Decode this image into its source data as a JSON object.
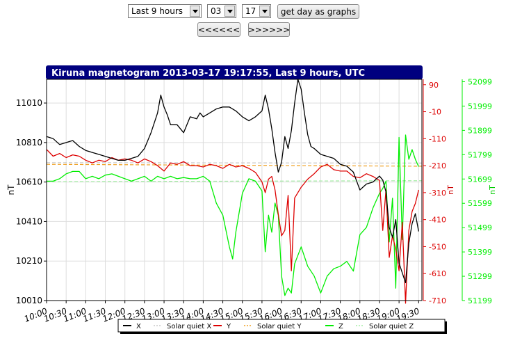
{
  "controls": {
    "range_select": "Last 9 hours",
    "month_select": "03",
    "day_select": "17",
    "get_day_button": "get day as graphs",
    "prev_button": "<<<<<<",
    "next_button": ">>>>>>"
  },
  "colors": {
    "x": "#000000",
    "y": "#dd0000",
    "z": "#00ee00",
    "quiet_x": "#c8c8c8",
    "quiet_y": "#f0a020",
    "quiet_z": "#a6eea6",
    "title_bg": "#00007f"
  },
  "chart_data": {
    "type": "line",
    "title": "Kiruna magnetogram 2013-03-17 19:17:55, Last 9 hours, UTC",
    "x_ticks": [
      "10:00",
      "10:30",
      "11:00",
      "11:30",
      "12:00",
      "12:30",
      "13:00",
      "13:30",
      "14:00",
      "14:30",
      "15:00",
      "15:30",
      "16:00",
      "16:30",
      "17:00",
      "17:30",
      "18:00",
      "18:30",
      "19:00",
      "19:30"
    ],
    "xlim": [
      "10:00",
      "19:35"
    ],
    "left_axis": {
      "label": "nT",
      "ylim": [
        10010,
        11130
      ],
      "ticks": [
        "10010",
        "10210",
        "10410",
        "10610",
        "10810",
        "11010"
      ]
    },
    "right_axis_y": {
      "label": "nT",
      "ylim": [
        -710,
        110
      ],
      "ticks": [
        "90",
        "-10",
        "-110",
        "-210",
        "-310",
        "-410",
        "-510",
        "-610",
        "-710"
      ]
    },
    "right_axis_z": {
      "label": "nT",
      "ylim": [
        51199,
        52109
      ],
      "ticks": [
        "52099",
        "51999",
        "51899",
        "51799",
        "51699",
        "51599",
        "51499",
        "51399",
        "51299",
        "51199"
      ]
    },
    "grid": true,
    "legend": [
      "X",
      "Solar quiet X",
      "Y",
      "Solar quiet Y",
      "Z",
      "Solar quiet Z"
    ],
    "series": [
      {
        "name": "X",
        "axis": "left",
        "style": "solid",
        "x": [
          "10:00",
          "10:10",
          "10:20",
          "10:30",
          "10:40",
          "10:50",
          "11:00",
          "11:10",
          "11:20",
          "11:30",
          "11:40",
          "11:50",
          "12:00",
          "12:10",
          "12:20",
          "12:30",
          "12:40",
          "12:50",
          "12:55",
          "13:00",
          "13:05",
          "13:10",
          "13:20",
          "13:30",
          "13:40",
          "13:50",
          "13:55",
          "14:00",
          "14:10",
          "14:20",
          "14:30",
          "14:40",
          "14:50",
          "15:00",
          "15:10",
          "15:20",
          "15:30",
          "15:35",
          "15:40",
          "15:45",
          "15:50",
          "15:55",
          "16:00",
          "16:05",
          "16:10",
          "16:15",
          "16:20",
          "16:25",
          "16:30",
          "16:35",
          "16:40",
          "16:45",
          "16:50",
          "17:00",
          "17:10",
          "17:20",
          "17:30",
          "17:40",
          "17:50",
          "18:00",
          "18:10",
          "18:20",
          "18:30",
          "18:35",
          "18:40",
          "18:45",
          "18:50",
          "18:55",
          "19:00",
          "19:05",
          "19:10",
          "19:15",
          "19:20",
          "19:25",
          "19:30"
        ],
        "values": [
          10840,
          10830,
          10800,
          10810,
          10820,
          10790,
          10770,
          10760,
          10750,
          10740,
          10730,
          10720,
          10720,
          10730,
          10740,
          10780,
          10860,
          10960,
          11050,
          10990,
          10950,
          10900,
          10900,
          10860,
          10940,
          10930,
          10960,
          10940,
          10960,
          10980,
          10990,
          10990,
          10970,
          10940,
          10920,
          10940,
          10970,
          11050,
          10980,
          10880,
          10760,
          10660,
          10710,
          10840,
          10780,
          10870,
          11010,
          11130,
          11080,
          10960,
          10850,
          10790,
          10780,
          10750,
          10740,
          10730,
          10700,
          10690,
          10660,
          10570,
          10600,
          10610,
          10640,
          10620,
          10560,
          10380,
          10330,
          10420,
          10200,
          10150,
          10100,
          10300,
          10400,
          10450,
          10360
        ]
      },
      {
        "name": "Solar quiet X",
        "axis": "left",
        "style": "dashed",
        "x": [
          "10:00",
          "19:35"
        ],
        "values": [
          10708,
          10706
        ]
      },
      {
        "name": "Y",
        "axis": "right_y",
        "style": "solid",
        "x": [
          "10:00",
          "10:10",
          "10:20",
          "10:30",
          "10:40",
          "10:50",
          "11:00",
          "11:10",
          "11:20",
          "11:30",
          "11:40",
          "11:50",
          "12:00",
          "12:10",
          "12:20",
          "12:30",
          "12:40",
          "12:50",
          "13:00",
          "13:10",
          "13:20",
          "13:30",
          "13:40",
          "13:50",
          "14:00",
          "14:10",
          "14:20",
          "14:30",
          "14:40",
          "14:50",
          "15:00",
          "15:10",
          "15:20",
          "15:30",
          "15:35",
          "15:40",
          "15:45",
          "15:50",
          "15:55",
          "16:00",
          "16:05",
          "16:10",
          "16:15",
          "16:20",
          "16:30",
          "16:40",
          "16:50",
          "17:00",
          "17:10",
          "17:20",
          "17:30",
          "17:40",
          "17:50",
          "18:00",
          "18:10",
          "18:20",
          "18:30",
          "18:35",
          "18:40",
          "18:45",
          "18:50",
          "18:55",
          "19:00",
          "19:05",
          "19:10",
          "19:15",
          "19:20",
          "19:25",
          "19:30"
        ],
        "values": [
          -150,
          -175,
          -165,
          -180,
          -170,
          -175,
          -190,
          -200,
          -190,
          -195,
          -180,
          -190,
          -185,
          -190,
          -200,
          -185,
          -195,
          -210,
          -230,
          -200,
          -205,
          -195,
          -210,
          -210,
          -215,
          -205,
          -210,
          -220,
          -205,
          -215,
          -210,
          -220,
          -235,
          -270,
          -310,
          -260,
          -250,
          -300,
          -390,
          -470,
          -450,
          -320,
          -600,
          -330,
          -290,
          -260,
          -240,
          -215,
          -205,
          -225,
          -230,
          -230,
          -250,
          -255,
          -240,
          -250,
          -265,
          -450,
          -300,
          -550,
          -470,
          -520,
          -600,
          -420,
          -720,
          -450,
          -380,
          -350,
          -300
        ]
      },
      {
        "name": "Solar quiet Y",
        "axis": "right_y",
        "style": "dashed",
        "x": [
          "10:00",
          "19:35"
        ],
        "values": [
          -205,
          -212
        ]
      },
      {
        "name": "Z",
        "axis": "right_z",
        "style": "solid",
        "x": [
          "10:00",
          "10:10",
          "10:20",
          "10:30",
          "10:40",
          "10:50",
          "11:00",
          "11:10",
          "11:20",
          "11:30",
          "11:40",
          "11:50",
          "12:00",
          "12:10",
          "12:20",
          "12:30",
          "12:40",
          "12:50",
          "13:00",
          "13:10",
          "13:20",
          "13:30",
          "13:40",
          "13:50",
          "14:00",
          "14:10",
          "14:20",
          "14:30",
          "14:40",
          "14:45",
          "14:50",
          "15:00",
          "15:10",
          "15:20",
          "15:30",
          "15:35",
          "15:40",
          "15:45",
          "15:50",
          "15:55",
          "16:00",
          "16:05",
          "16:10",
          "16:15",
          "16:20",
          "16:30",
          "16:40",
          "16:50",
          "17:00",
          "17:10",
          "17:20",
          "17:30",
          "17:40",
          "17:50",
          "18:00",
          "18:10",
          "18:20",
          "18:30",
          "18:35",
          "18:40",
          "18:45",
          "18:50",
          "18:55",
          "19:00",
          "19:05",
          "19:10",
          "19:15",
          "19:20",
          "19:25",
          "19:30"
        ],
        "values": [
          51690,
          51690,
          51700,
          51720,
          51730,
          51730,
          51700,
          51710,
          51700,
          51715,
          51720,
          51710,
          51700,
          51690,
          51700,
          51710,
          51690,
          51710,
          51700,
          51710,
          51700,
          51705,
          51700,
          51700,
          51710,
          51690,
          51600,
          51550,
          51420,
          51370,
          51480,
          51640,
          51700,
          51690,
          51650,
          51400,
          51550,
          51480,
          51600,
          51550,
          51300,
          51220,
          51250,
          51230,
          51350,
          51420,
          51340,
          51300,
          51230,
          51300,
          51330,
          51340,
          51360,
          51320,
          51470,
          51500,
          51580,
          51640,
          51660,
          51690,
          51440,
          51620,
          51250,
          51870,
          51450,
          51880,
          51780,
          51820,
          51780,
          51750
        ]
      },
      {
        "name": "Solar quiet Z",
        "axis": "right_z",
        "style": "dashed",
        "x": [
          "10:00",
          "19:35"
        ],
        "values": [
          51688,
          51692
        ]
      }
    ]
  }
}
